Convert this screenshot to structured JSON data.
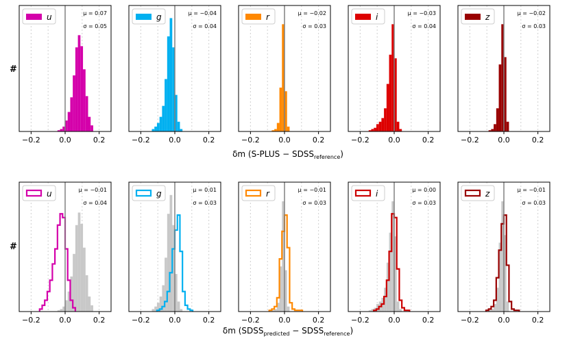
{
  "figure": {
    "ylabel": "#",
    "top_xlabel": {
      "main": "δm (S-PLUS − SDSS",
      "sub": "reference",
      "close": ")"
    },
    "bottom_xlabel": {
      "main": "δm (SDSS",
      "sub1": "predicted",
      "mid": " − SDSS",
      "sub2": "reference",
      "close": ")"
    }
  },
  "chart_data": [
    {
      "type": "histogram",
      "row": "top",
      "band": "u",
      "color": "#d400aa",
      "mu_label": "μ = 0.07",
      "sigma_label": "σ = 0.05",
      "xlim": [
        -0.27,
        0.27
      ],
      "xticks": [
        -0.2,
        0.0,
        0.2
      ],
      "xtick_labels": [
        "−0.2",
        "0.0",
        "0.2"
      ],
      "ylim": [
        0,
        1
      ],
      "bin_width": 0.015,
      "bins": [
        -0.045,
        -0.03,
        -0.015,
        0,
        0.015,
        0.03,
        0.045,
        0.06,
        0.075,
        0.09,
        0.105,
        0.12,
        0.135,
        0.15
      ],
      "values": [
        0.01,
        0.02,
        0.04,
        0.09,
        0.16,
        0.28,
        0.46,
        0.69,
        0.79,
        0.7,
        0.51,
        0.29,
        0.12,
        0.05
      ]
    },
    {
      "type": "histogram",
      "row": "top",
      "band": "g",
      "color": "#00b0f0",
      "mu_label": "μ = −0.04",
      "sigma_label": "σ = 0.04",
      "xlim": [
        -0.27,
        0.27
      ],
      "xticks": [
        -0.2,
        0.0,
        0.2
      ],
      "xtick_labels": [
        "−0.2",
        "0.0",
        "0.2"
      ],
      "ylim": [
        0,
        1
      ],
      "bin_width": 0.015,
      "bins": [
        -0.135,
        -0.12,
        -0.105,
        -0.09,
        -0.075,
        -0.06,
        -0.045,
        -0.03,
        -0.015,
        0,
        0.015,
        0.03
      ],
      "values": [
        0.02,
        0.04,
        0.07,
        0.12,
        0.21,
        0.43,
        0.78,
        0.93,
        0.69,
        0.3,
        0.08,
        0.02
      ]
    },
    {
      "type": "histogram",
      "row": "top",
      "band": "r",
      "color": "#ff8800",
      "mu_label": "μ = −0.02",
      "sigma_label": "σ = 0.03",
      "xlim": [
        -0.27,
        0.27
      ],
      "xticks": [
        -0.2,
        0.0,
        0.2
      ],
      "xtick_labels": [
        "−0.2",
        "0.0",
        "0.2"
      ],
      "ylim": [
        0,
        1
      ],
      "bin_width": 0.015,
      "bins": [
        -0.075,
        -0.06,
        -0.045,
        -0.03,
        -0.015,
        0,
        0.015
      ],
      "values": [
        0.01,
        0.02,
        0.07,
        0.36,
        0.88,
        0.33,
        0.04
      ]
    },
    {
      "type": "histogram",
      "row": "top",
      "band": "i",
      "color": "#dd0000",
      "mu_label": "μ = −0.03",
      "sigma_label": "σ = 0.04",
      "xlim": [
        -0.27,
        0.27
      ],
      "xticks": [
        -0.2,
        0.0,
        0.2
      ],
      "xtick_labels": [
        "−0.2",
        "0.0",
        "0.2"
      ],
      "ylim": [
        0,
        1
      ],
      "bin_width": 0.015,
      "bins": [
        -0.15,
        -0.135,
        -0.12,
        -0.105,
        -0.09,
        -0.075,
        -0.06,
        -0.045,
        -0.03,
        -0.015,
        0,
        0.015,
        0.03
      ],
      "values": [
        0.01,
        0.02,
        0.03,
        0.06,
        0.08,
        0.11,
        0.19,
        0.39,
        0.63,
        0.88,
        0.6,
        0.08,
        0.02
      ]
    },
    {
      "type": "histogram",
      "row": "top",
      "band": "z",
      "color": "#990000",
      "mu_label": "μ = −0.02",
      "sigma_label": "σ = 0.03",
      "xlim": [
        -0.27,
        0.27
      ],
      "xticks": [
        -0.2,
        0.0,
        0.2
      ],
      "xtick_labels": [
        "−0.2",
        "0.0",
        "0.2"
      ],
      "ylim": [
        0,
        1
      ],
      "bin_width": 0.015,
      "bins": [
        -0.09,
        -0.075,
        -0.06,
        -0.045,
        -0.03,
        -0.015,
        0,
        0.015
      ],
      "values": [
        0.01,
        0.02,
        0.06,
        0.19,
        0.55,
        0.88,
        0.61,
        0.08
      ]
    },
    {
      "type": "histogram",
      "row": "bottom",
      "band": "u",
      "color": "#d400aa",
      "mu_label": "μ = −0.01",
      "sigma_label": "σ = 0.04",
      "xlim": [
        -0.27,
        0.27
      ],
      "xticks": [
        -0.2,
        0.0,
        0.2
      ],
      "xtick_labels": [
        "−0.2",
        "0.0",
        "0.2"
      ],
      "ylim": [
        0,
        1
      ],
      "bin_width": 0.015,
      "bins": [
        -0.15,
        -0.135,
        -0.12,
        -0.105,
        -0.09,
        -0.075,
        -0.06,
        -0.045,
        -0.03,
        -0.015,
        0,
        0.015,
        0.03,
        0.045
      ],
      "values": [
        0.02,
        0.05,
        0.09,
        0.16,
        0.25,
        0.38,
        0.5,
        0.69,
        0.78,
        0.75,
        0.5,
        0.25,
        0.09,
        0.03
      ],
      "reference": {
        "bins": [
          -0.045,
          -0.03,
          -0.015,
          0,
          0.015,
          0.03,
          0.045,
          0.06,
          0.075,
          0.09,
          0.105,
          0.12,
          0.135,
          0.15
        ],
        "values": [
          0.01,
          0.02,
          0.04,
          0.09,
          0.16,
          0.28,
          0.46,
          0.69,
          0.79,
          0.7,
          0.51,
          0.29,
          0.12,
          0.05
        ]
      }
    },
    {
      "type": "histogram",
      "row": "bottom",
      "band": "g",
      "color": "#00b0f0",
      "mu_label": "μ = 0.01",
      "sigma_label": "σ = 0.03",
      "xlim": [
        -0.27,
        0.27
      ],
      "xticks": [
        -0.2,
        0.0,
        0.2
      ],
      "xtick_labels": [
        "−0.2",
        "0.0",
        "0.2"
      ],
      "ylim": [
        0,
        1
      ],
      "bin_width": 0.015,
      "bins": [
        -0.105,
        -0.09,
        -0.075,
        -0.06,
        -0.045,
        -0.03,
        -0.015,
        0,
        0.015,
        0.03,
        0.045,
        0.06,
        0.075,
        0.09
      ],
      "values": [
        0.01,
        0.02,
        0.04,
        0.08,
        0.16,
        0.31,
        0.5,
        0.65,
        0.77,
        0.48,
        0.16,
        0.05,
        0.02,
        0.01
      ],
      "reference": {
        "bins": [
          -0.135,
          -0.12,
          -0.105,
          -0.09,
          -0.075,
          -0.06,
          -0.045,
          -0.03,
          -0.015,
          0,
          0.015,
          0.03
        ],
        "values": [
          0.02,
          0.04,
          0.07,
          0.12,
          0.21,
          0.43,
          0.78,
          0.93,
          0.69,
          0.3,
          0.08,
          0.02
        ]
      }
    },
    {
      "type": "histogram",
      "row": "bottom",
      "band": "r",
      "color": "#ff8800",
      "mu_label": "μ = −0.01",
      "sigma_label": "σ = 0.03",
      "xlim": [
        -0.27,
        0.27
      ],
      "xticks": [
        -0.2,
        0.0,
        0.2
      ],
      "xtick_labels": [
        "−0.2",
        "0.0",
        "0.2"
      ],
      "ylim": [
        0,
        1
      ],
      "bin_width": 0.015,
      "bins": [
        -0.09,
        -0.075,
        -0.06,
        -0.045,
        -0.03,
        -0.015,
        0,
        0.015,
        0.03,
        0.045,
        0.06,
        0.075,
        0.09
      ],
      "values": [
        0.01,
        0.02,
        0.04,
        0.11,
        0.42,
        0.64,
        0.77,
        0.51,
        0.07,
        0.02,
        0.01,
        0.01,
        0.01
      ],
      "reference": {
        "bins": [
          -0.075,
          -0.06,
          -0.045,
          -0.03,
          -0.015,
          0,
          0.015
        ],
        "values": [
          0.01,
          0.02,
          0.07,
          0.36,
          0.88,
          0.33,
          0.04
        ]
      }
    },
    {
      "type": "histogram",
      "row": "bottom",
      "band": "i",
      "color": "#cc0000",
      "mu_label": "μ = 0.00",
      "sigma_label": "σ = 0.03",
      "xlim": [
        -0.27,
        0.27
      ],
      "xticks": [
        -0.2,
        0.0,
        0.2
      ],
      "xtick_labels": [
        "−0.2",
        "0.0",
        "0.2"
      ],
      "ylim": [
        0,
        1
      ],
      "bin_width": 0.015,
      "bins": [
        -0.12,
        -0.105,
        -0.09,
        -0.075,
        -0.06,
        -0.045,
        -0.03,
        -0.015,
        0,
        0.015,
        0.03,
        0.045,
        0.06,
        0.075
      ],
      "values": [
        0.01,
        0.02,
        0.04,
        0.06,
        0.12,
        0.25,
        0.48,
        0.78,
        0.75,
        0.34,
        0.09,
        0.03,
        0.01,
        0.01
      ],
      "reference": {
        "bins": [
          -0.15,
          -0.135,
          -0.12,
          -0.105,
          -0.09,
          -0.075,
          -0.06,
          -0.045,
          -0.03,
          -0.015,
          0,
          0.015,
          0.03
        ],
        "values": [
          0.01,
          0.02,
          0.03,
          0.06,
          0.08,
          0.11,
          0.19,
          0.39,
          0.63,
          0.88,
          0.6,
          0.08,
          0.02
        ]
      }
    },
    {
      "type": "histogram",
      "row": "bottom",
      "band": "z",
      "color": "#990000",
      "mu_label": "μ = −0.01",
      "sigma_label": "σ = 0.03",
      "xlim": [
        -0.27,
        0.27
      ],
      "xticks": [
        -0.2,
        0.0,
        0.2
      ],
      "xtick_labels": [
        "−0.2",
        "0.0",
        "0.2"
      ],
      "ylim": [
        0,
        1
      ],
      "bin_width": 0.015,
      "bins": [
        -0.105,
        -0.09,
        -0.075,
        -0.06,
        -0.045,
        -0.03,
        -0.015,
        0,
        0.015,
        0.03,
        0.045,
        0.06,
        0.075
      ],
      "values": [
        0.01,
        0.02,
        0.04,
        0.09,
        0.27,
        0.49,
        0.7,
        0.77,
        0.37,
        0.08,
        0.02,
        0.01,
        0.01
      ],
      "reference": {
        "bins": [
          -0.09,
          -0.075,
          -0.06,
          -0.045,
          -0.03,
          -0.015,
          0,
          0.015
        ],
        "values": [
          0.01,
          0.02,
          0.06,
          0.19,
          0.55,
          0.88,
          0.61,
          0.08
        ]
      }
    }
  ]
}
